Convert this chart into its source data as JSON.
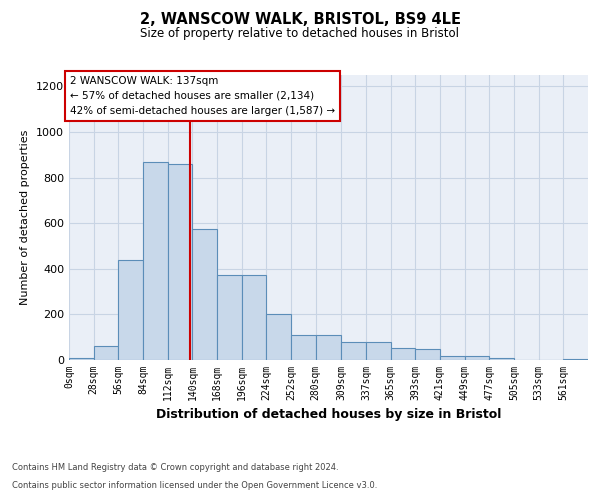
{
  "title1": "2, WANSCOW WALK, BRISTOL, BS9 4LE",
  "title2": "Size of property relative to detached houses in Bristol",
  "xlabel": "Distribution of detached houses by size in Bristol",
  "ylabel": "Number of detached properties",
  "bar_values": [
    10,
    62,
    440,
    870,
    860,
    575,
    375,
    375,
    200,
    110,
    110,
    80,
    80,
    52,
    47,
    17,
    17,
    8,
    2,
    2,
    5
  ],
  "bar_edges": [
    0,
    28,
    56,
    84,
    112,
    140,
    168,
    196,
    224,
    252,
    280,
    309,
    337,
    365,
    393,
    421,
    449,
    477,
    505,
    533,
    561,
    589
  ],
  "bar_color": "#c8d8ea",
  "bar_edge_color": "#5b8db8",
  "vline_x": 137,
  "vline_color": "#cc0000",
  "annotation_title": "2 WANSCOW WALK: 137sqm",
  "annotation_line1": "← 57% of detached houses are smaller (2,134)",
  "annotation_line2": "42% of semi-detached houses are larger (1,587) →",
  "annotation_box_color": "#cc0000",
  "ylim": [
    0,
    1250
  ],
  "yticks": [
    0,
    200,
    400,
    600,
    800,
    1000,
    1200
  ],
  "xtick_labels": [
    "0sqm",
    "28sqm",
    "56sqm",
    "84sqm",
    "112sqm",
    "140sqm",
    "168sqm",
    "196sqm",
    "224sqm",
    "252sqm",
    "280sqm",
    "309sqm",
    "337sqm",
    "365sqm",
    "393sqm",
    "421sqm",
    "449sqm",
    "477sqm",
    "505sqm",
    "533sqm",
    "561sqm"
  ],
  "grid_color": "#c8d4e4",
  "bg_color": "#eaeff7",
  "footer_line1": "Contains HM Land Registry data © Crown copyright and database right 2024.",
  "footer_line2": "Contains public sector information licensed under the Open Government Licence v3.0."
}
